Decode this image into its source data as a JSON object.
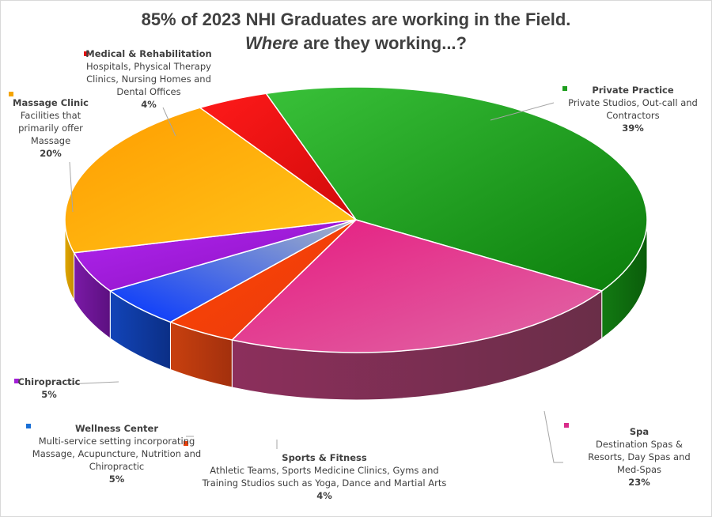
{
  "title": {
    "line1": "85% of 2023 NHI Graduates are working in the Field.",
    "line2_italic": "Where",
    "line2_rest": " are they working...?"
  },
  "chart_data": {
    "type": "pie",
    "title": "85% of 2023 NHI Graduates are working in the Field. Where are they working...?",
    "unit": "%",
    "slices": [
      {
        "name": "Private Practice",
        "description": "Private Studios, Out-call and Contractors",
        "value": 39,
        "label": "39%",
        "color": "#1e9e1e"
      },
      {
        "name": "Spa",
        "description": "Destination Spas & Resorts, Day Spas and Med-Spas",
        "value": 23,
        "label": "23%",
        "color": "#d92c8a"
      },
      {
        "name": "Sports & Fitness",
        "description": "Athletic Teams, Sports Medicine Clinics, Gyms and Training Studios such as Yoga, Dance and Martial Arts",
        "value": 4,
        "label": "4%",
        "color": "#e8400c"
      },
      {
        "name": "Wellness Center",
        "description": "Multi-service setting incorporating Massage, Acupuncture, Nutrition and Chiropractic",
        "value": 5,
        "label": "5%",
        "color": "#1a6fd6"
      },
      {
        "name": "Chiropractic",
        "description": "",
        "value": 5,
        "label": "5%",
        "color": "#a21ed6"
      },
      {
        "name": "Massage Clinic",
        "description": "Facilities that primarily offer Massage",
        "value": 20,
        "label": "20%",
        "color": "#f5a500"
      },
      {
        "name": "Medical & Rehabilitation",
        "description": "Hospitals, Physical Therapy Clinics, Nursing Homes and Dental Offices",
        "value": 4,
        "label": "4%",
        "color": "#e01010"
      }
    ]
  }
}
